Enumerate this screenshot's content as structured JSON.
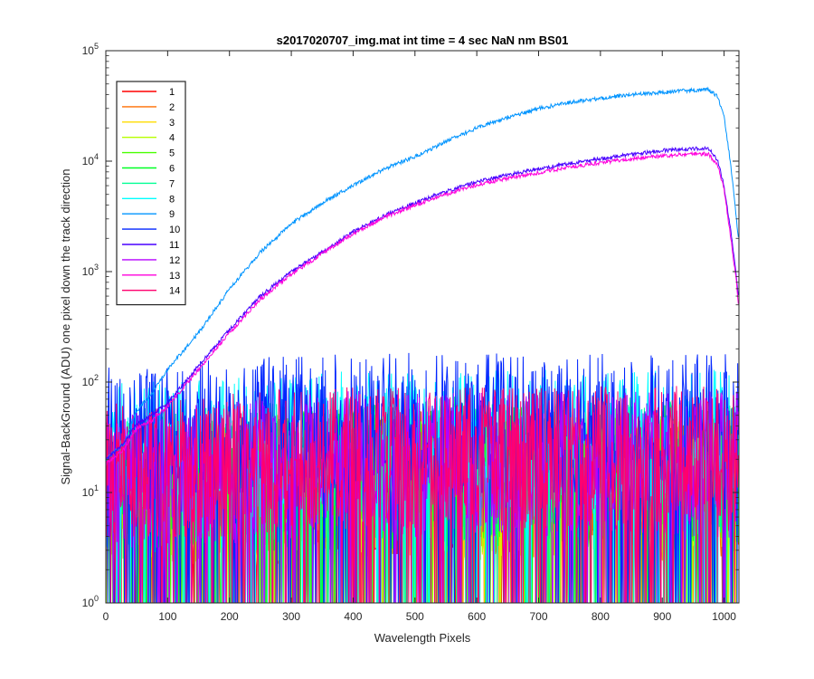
{
  "chart_data": {
    "type": "line",
    "title": "s2017020707_img.mat int time = 4 sec  NaN nm BS01",
    "xlabel": "Wavelength Pixels",
    "ylabel": "Signal-BackGround (ADU) one pixel down the track direction",
    "xlim": [
      0,
      1024
    ],
    "ylim": [
      1,
      100000
    ],
    "yscale": "log",
    "xticks": [
      0,
      100,
      200,
      300,
      400,
      500,
      600,
      700,
      800,
      900,
      1000
    ],
    "xtick_labels": [
      "0",
      "100",
      "200",
      "300",
      "400",
      "500",
      "600",
      "700",
      "800",
      "900",
      "1000"
    ],
    "yticks": [
      1,
      10,
      100,
      1000,
      10000,
      100000
    ],
    "ytick_labels": [
      {
        "base": "10",
        "exp": "0"
      },
      {
        "base": "10",
        "exp": "1"
      },
      {
        "base": "10",
        "exp": "2"
      },
      {
        "base": "10",
        "exp": "3"
      },
      {
        "base": "10",
        "exp": "4"
      },
      {
        "base": "10",
        "exp": "5"
      }
    ],
    "grid": false,
    "legend_position": "top-left",
    "series": [
      {
        "name": "1",
        "color": "#ff0000",
        "kind": "noise",
        "level": 12,
        "min": 1
      },
      {
        "name": "2",
        "color": "#ff6e00",
        "kind": "noise",
        "level": 11,
        "min": 1
      },
      {
        "name": "3",
        "color": "#ffdc00",
        "kind": "noise",
        "level": 11,
        "min": 1
      },
      {
        "name": "4",
        "color": "#b6ff00",
        "kind": "noise",
        "level": 12,
        "min": 1
      },
      {
        "name": "5",
        "color": "#48ff00",
        "kind": "noise",
        "level": 13,
        "min": 1.5
      },
      {
        "name": "6",
        "color": "#00ff25",
        "kind": "noise",
        "level": 14,
        "min": 1.5
      },
      {
        "name": "7",
        "color": "#00ff93",
        "kind": "noise",
        "level": 16,
        "min": 2
      },
      {
        "name": "8",
        "color": "#00ffff",
        "kind": "noise",
        "level": 28,
        "min": 6
      },
      {
        "name": "9",
        "color": "#0094ff",
        "kind": "signal",
        "points": [
          [
            0,
            20
          ],
          [
            30,
            28
          ],
          [
            50,
            55
          ],
          [
            75,
            80
          ],
          [
            100,
            130
          ],
          [
            150,
            280
          ],
          [
            200,
            700
          ],
          [
            250,
            1500
          ],
          [
            300,
            2700
          ],
          [
            350,
            4200
          ],
          [
            400,
            6000
          ],
          [
            450,
            8500
          ],
          [
            500,
            11000
          ],
          [
            550,
            15000
          ],
          [
            600,
            20000
          ],
          [
            650,
            25000
          ],
          [
            700,
            30000
          ],
          [
            750,
            34000
          ],
          [
            800,
            37000
          ],
          [
            850,
            40000
          ],
          [
            900,
            42000
          ],
          [
            950,
            44000
          ],
          [
            975,
            44500
          ],
          [
            990,
            38000
          ],
          [
            1000,
            25000
          ],
          [
            1010,
            10000
          ],
          [
            1020,
            3000
          ],
          [
            1023,
            2000
          ]
        ]
      },
      {
        "name": "10",
        "color": "#0025ff",
        "kind": "noise",
        "level": 40,
        "min": 10
      },
      {
        "name": "11",
        "color": "#4800ff",
        "kind": "signal",
        "points": [
          [
            0,
            20
          ],
          [
            30,
            28
          ],
          [
            50,
            42
          ],
          [
            75,
            50
          ],
          [
            100,
            65
          ],
          [
            150,
            140
          ],
          [
            200,
            300
          ],
          [
            250,
            600
          ],
          [
            300,
            1000
          ],
          [
            350,
            1500
          ],
          [
            400,
            2300
          ],
          [
            450,
            3200
          ],
          [
            500,
            4200
          ],
          [
            550,
            5300
          ],
          [
            600,
            6500
          ],
          [
            650,
            7500
          ],
          [
            700,
            8500
          ],
          [
            750,
            9500
          ],
          [
            800,
            10500
          ],
          [
            850,
            11500
          ],
          [
            900,
            12500
          ],
          [
            950,
            13000
          ],
          [
            975,
            13000
          ],
          [
            990,
            10000
          ],
          [
            1000,
            6000
          ],
          [
            1010,
            2500
          ],
          [
            1020,
            900
          ],
          [
            1023,
            600
          ]
        ]
      },
      {
        "name": "12",
        "color": "#b600ff",
        "kind": "noise",
        "level": 18,
        "min": 3
      },
      {
        "name": "13",
        "color": "#ff00dc",
        "kind": "signal",
        "points": [
          [
            0,
            18
          ],
          [
            30,
            25
          ],
          [
            50,
            38
          ],
          [
            75,
            45
          ],
          [
            100,
            60
          ],
          [
            150,
            130
          ],
          [
            200,
            280
          ],
          [
            250,
            560
          ],
          [
            300,
            950
          ],
          [
            350,
            1450
          ],
          [
            400,
            2200
          ],
          [
            450,
            3100
          ],
          [
            500,
            4000
          ],
          [
            550,
            5000
          ],
          [
            600,
            6100
          ],
          [
            650,
            7000
          ],
          [
            700,
            7900
          ],
          [
            750,
            8800
          ],
          [
            800,
            9700
          ],
          [
            850,
            10500
          ],
          [
            900,
            11200
          ],
          [
            950,
            11700
          ],
          [
            975,
            11600
          ],
          [
            990,
            9000
          ],
          [
            1000,
            5500
          ],
          [
            1010,
            2200
          ],
          [
            1020,
            800
          ],
          [
            1023,
            500
          ]
        ]
      },
      {
        "name": "14",
        "color": "#ff006e",
        "kind": "noise",
        "level": 20,
        "min": 4
      }
    ]
  }
}
